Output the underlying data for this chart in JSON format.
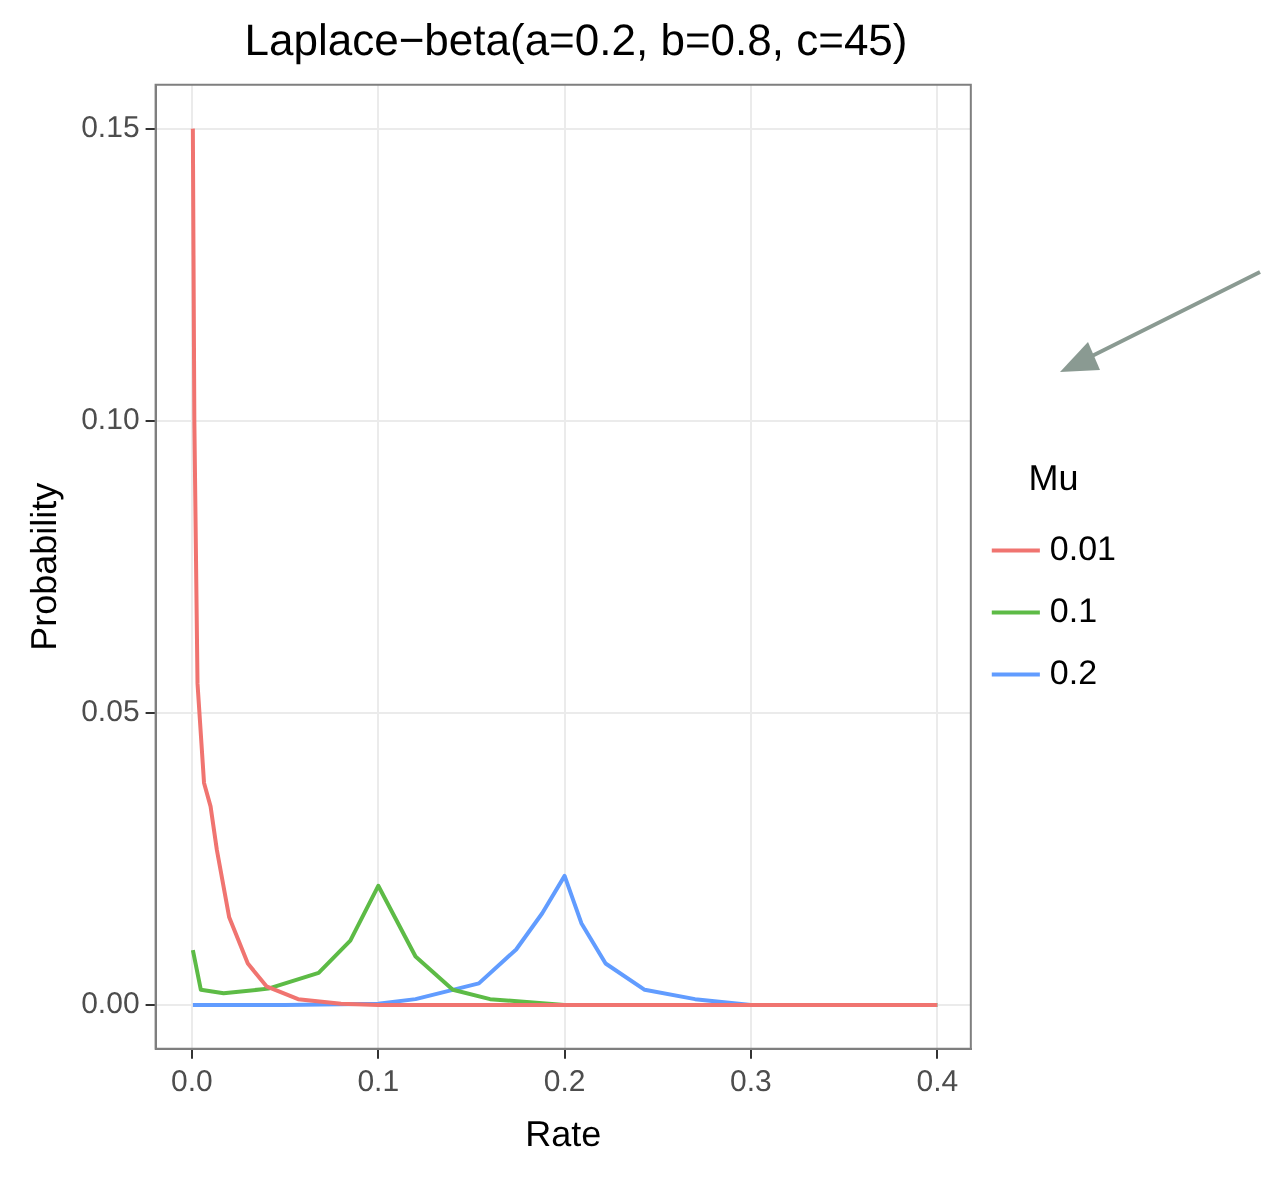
{
  "chart_data": {
    "type": "line",
    "title": "Laplace−beta(a=0.2, b=0.8, c=45)",
    "xlabel": "Rate",
    "ylabel": "Probability",
    "legend_title": "Mu",
    "xlim": [
      -0.0195,
      0.418
    ],
    "ylim": [
      -0.0075,
      0.1575
    ],
    "xticks": [
      {
        "value": 0,
        "label": "0.0"
      },
      {
        "value": 0.1,
        "label": "0.1"
      },
      {
        "value": 0.2,
        "label": "0.2"
      },
      {
        "value": 0.3,
        "label": "0.3"
      },
      {
        "value": 0.4,
        "label": "0.4"
      }
    ],
    "yticks": [
      {
        "value": 0,
        "label": "0.00"
      },
      {
        "value": 0.05,
        "label": "0.05"
      },
      {
        "value": 0.1,
        "label": "0.10"
      },
      {
        "value": 0.15,
        "label": "0.15"
      }
    ],
    "grid": true,
    "legend": "right",
    "marker": "none",
    "line_style": "solid",
    "series": [
      {
        "name": "0.01",
        "color": "#f07470",
        "x": [
          0.0005,
          0.0013,
          0.003,
          0.0065,
          0.01,
          0.0134,
          0.02,
          0.03,
          0.04,
          0.057,
          0.08,
          0.1,
          0.2,
          0.3,
          0.4
        ],
        "values": [
          0.15,
          0.1,
          0.055,
          0.038,
          0.034,
          0.0265,
          0.015,
          0.0071,
          0.0032,
          0.001,
          0.0002,
          0,
          0,
          0,
          0
        ]
      },
      {
        "name": "0.1",
        "color": "#5dbb46",
        "x": [
          0.0005,
          0.0048,
          0.017,
          0.041,
          0.068,
          0.085,
          0.1,
          0.12,
          0.14,
          0.16,
          0.2,
          0.3,
          0.4
        ],
        "values": [
          0.0094,
          0.0026,
          0.002,
          0.0028,
          0.0055,
          0.011,
          0.0204,
          0.0083,
          0.0026,
          0.001,
          0,
          0,
          0
        ]
      },
      {
        "name": "0.2",
        "color": "#619cff",
        "x": [
          0.0005,
          0.05,
          0.1,
          0.12,
          0.154,
          0.174,
          0.188,
          0.2,
          0.209,
          0.222,
          0.243,
          0.27,
          0.3,
          0.4
        ],
        "values": [
          0,
          0,
          0.0002,
          0.001,
          0.0037,
          0.0095,
          0.0157,
          0.0221,
          0.014,
          0.0071,
          0.0026,
          0.001,
          0,
          0
        ]
      }
    ]
  }
}
